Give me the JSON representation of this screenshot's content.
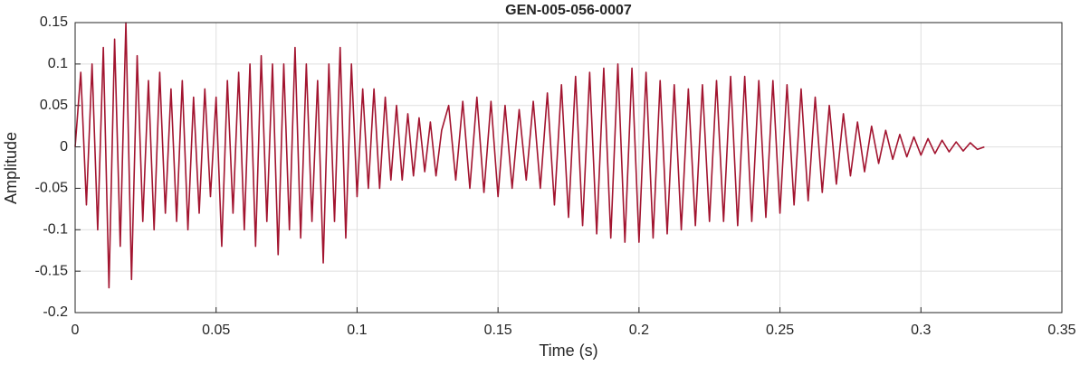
{
  "chart_data": {
    "type": "line",
    "title": "GEN-005-056-0007",
    "xlabel": "Time (s)",
    "ylabel": "Amplitude",
    "color": "#a2142f",
    "grid": true,
    "xlim": [
      0,
      0.35
    ],
    "xticks": [
      0,
      0.05,
      0.1,
      0.15,
      0.2,
      0.25,
      0.3,
      0.35
    ],
    "ylim": [
      -0.2,
      0.15
    ],
    "yticks": [
      -0.2,
      -0.15,
      -0.1,
      -0.05,
      0,
      0.05,
      0.1,
      0.15
    ],
    "x": [
      0,
      0.002,
      0.004,
      0.006,
      0.008,
      0.01,
      0.012,
      0.014,
      0.016,
      0.018,
      0.02,
      0.022,
      0.024,
      0.026,
      0.028,
      0.03,
      0.032,
      0.034,
      0.036,
      0.038,
      0.04,
      0.042,
      0.044,
      0.046,
      0.048,
      0.05,
      0.052,
      0.054,
      0.056,
      0.058,
      0.06,
      0.062,
      0.064,
      0.066,
      0.068,
      0.07,
      0.072,
      0.074,
      0.076,
      0.078,
      0.08,
      0.082,
      0.084,
      0.086,
      0.088,
      0.09,
      0.092,
      0.094,
      0.096,
      0.098,
      0.1,
      0.102,
      0.104,
      0.106,
      0.108,
      0.11,
      0.112,
      0.114,
      0.116,
      0.118,
      0.12,
      0.122,
      0.124,
      0.126,
      0.128,
      0.13,
      0.1325,
      0.135,
      0.1375,
      0.14,
      0.1425,
      0.145,
      0.1475,
      0.15,
      0.1525,
      0.155,
      0.1575,
      0.16,
      0.1625,
      0.165,
      0.1675,
      0.17,
      0.1725,
      0.175,
      0.1775,
      0.18,
      0.1825,
      0.185,
      0.1875,
      0.19,
      0.1925,
      0.195,
      0.1975,
      0.2,
      0.2025,
      0.205,
      0.2075,
      0.21,
      0.2125,
      0.215,
      0.2175,
      0.22,
      0.2225,
      0.225,
      0.2275,
      0.23,
      0.2325,
      0.235,
      0.2375,
      0.24,
      0.2425,
      0.245,
      0.2475,
      0.25,
      0.2525,
      0.255,
      0.2575,
      0.26,
      0.2625,
      0.265,
      0.2675,
      0.27,
      0.2725,
      0.275,
      0.2775,
      0.28,
      0.2825,
      0.285,
      0.2875,
      0.29,
      0.2925,
      0.295,
      0.2975,
      0.3,
      0.3025,
      0.305,
      0.3075,
      0.31,
      0.3125,
      0.315,
      0.3175,
      0.32,
      0.3225
    ],
    "values": [
      0,
      0.09,
      -0.07,
      0.1,
      -0.1,
      0.12,
      -0.17,
      0.13,
      -0.12,
      0.15,
      -0.16,
      0.11,
      -0.09,
      0.08,
      -0.1,
      0.09,
      -0.08,
      0.07,
      -0.09,
      0.08,
      -0.1,
      0.06,
      -0.08,
      0.07,
      -0.06,
      0.06,
      -0.12,
      0.08,
      -0.08,
      0.09,
      -0.1,
      0.1,
      -0.12,
      0.11,
      -0.09,
      0.1,
      -0.13,
      0.1,
      -0.1,
      0.12,
      -0.11,
      0.1,
      -0.09,
      0.08,
      -0.14,
      0.1,
      -0.09,
      0.12,
      -0.11,
      0.1,
      -0.06,
      0.07,
      -0.05,
      0.07,
      -0.05,
      0.06,
      -0.04,
      0.05,
      -0.04,
      0.04,
      -0.035,
      0.035,
      -0.03,
      0.03,
      -0.035,
      0.02,
      0.05,
      -0.04,
      0.055,
      -0.05,
      0.06,
      -0.055,
      0.055,
      -0.06,
      0.05,
      -0.05,
      0.045,
      -0.04,
      0.055,
      -0.05,
      0.065,
      -0.07,
      0.075,
      -0.085,
      0.085,
      -0.095,
      0.09,
      -0.105,
      0.095,
      -0.11,
      0.1,
      -0.115,
      0.095,
      -0.115,
      0.09,
      -0.11,
      0.08,
      -0.105,
      0.075,
      -0.1,
      0.07,
      -0.095,
      0.075,
      -0.09,
      0.08,
      -0.09,
      0.085,
      -0.095,
      0.085,
      -0.09,
      0.08,
      -0.085,
      0.08,
      -0.08,
      0.075,
      -0.07,
      0.07,
      -0.065,
      0.06,
      -0.055,
      0.05,
      -0.045,
      0.04,
      -0.035,
      0.03,
      -0.03,
      0.025,
      -0.02,
      0.02,
      -0.015,
      0.015,
      -0.012,
      0.012,
      -0.01,
      0.01,
      -0.008,
      0.008,
      -0.006,
      0.006,
      -0.005,
      0.005,
      -0.003,
      0
    ]
  }
}
